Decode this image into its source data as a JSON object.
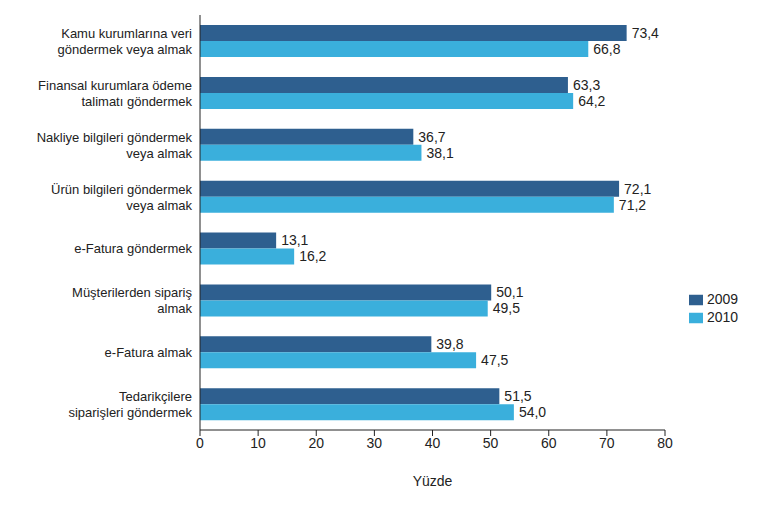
{
  "chart_data": {
    "type": "bar",
    "orientation": "horizontal",
    "categories": [
      "Kamu kurumlarına veri\ngöndermek veya almak",
      "Finansal kurumlara ödeme\ntalimatı göndermek",
      "Nakliye bilgileri göndermek\nveya almak",
      "Ürün bilgileri göndermek\nveya almak",
      "e-Fatura göndermek",
      "Müşterilerden sipariş\nalmak",
      "e-Fatura almak",
      "Tedarikçilere\nsiparişleri göndermek"
    ],
    "series": [
      {
        "name": "2009",
        "color": "#2e5f8f",
        "values": [
          73.4,
          63.3,
          36.7,
          72.1,
          13.1,
          50.1,
          39.8,
          51.5
        ],
        "value_labels": [
          "73,4",
          "63,3",
          "36,7",
          "72,1",
          "13,1",
          "50,1",
          "39,8",
          "51,5"
        ]
      },
      {
        "name": "2010",
        "color": "#3aafdc",
        "values": [
          66.8,
          64.2,
          38.1,
          71.2,
          16.2,
          49.5,
          47.5,
          54.0
        ],
        "value_labels": [
          "66,8",
          "64,2",
          "38,1",
          "71,2",
          "16,2",
          "49,5",
          "47,5",
          "54,0"
        ]
      }
    ],
    "x_label": "Yüzde",
    "xlim": [
      0,
      80
    ],
    "xticks": [
      0,
      10,
      20,
      30,
      40,
      50,
      60,
      70,
      80
    ],
    "legend": "right",
    "data_labels": true,
    "grid": false
  }
}
